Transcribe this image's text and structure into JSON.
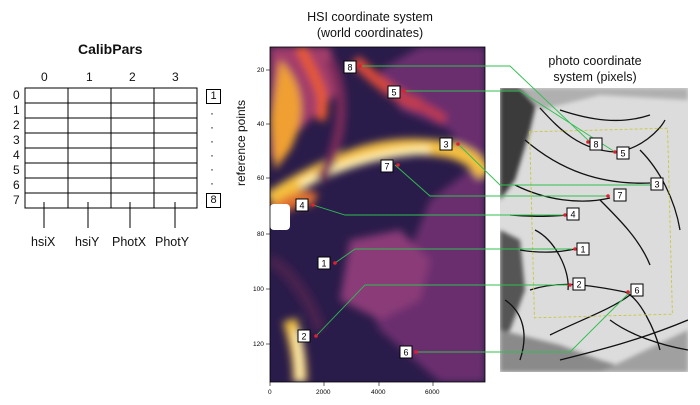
{
  "calib_title": "CalibPars",
  "columns": [
    "0",
    "1",
    "2",
    "3"
  ],
  "rows": [
    "0",
    "1",
    "2",
    "3",
    "4",
    "5",
    "6",
    "7"
  ],
  "bottom_labels": [
    "hsiX",
    "hsiY",
    "PhotX",
    "PhotY"
  ],
  "reference_label": "reference points",
  "ref_first": "1",
  "ref_last": "8",
  "hsi_title": [
    "HSI coordinate system",
    "(world coordinates)"
  ],
  "photo_title": [
    "photo coordinate",
    "system (pixels)"
  ],
  "hsi_y_ticks": [
    "20",
    "40",
    "60",
    "80",
    "100",
    "120"
  ],
  "hsi_x_ticks": [
    "0",
    "2000",
    "4000",
    "6000"
  ],
  "hsi_markers": [
    "1",
    "2",
    "3",
    "4",
    "5",
    "6",
    "7",
    "8"
  ],
  "photo_markers": [
    "1",
    "2",
    "3",
    "4",
    "5",
    "6",
    "7",
    "8"
  ],
  "colors": {
    "connector": "#2fbf4f",
    "marker": "#e02030",
    "roi": "#c8c840"
  }
}
